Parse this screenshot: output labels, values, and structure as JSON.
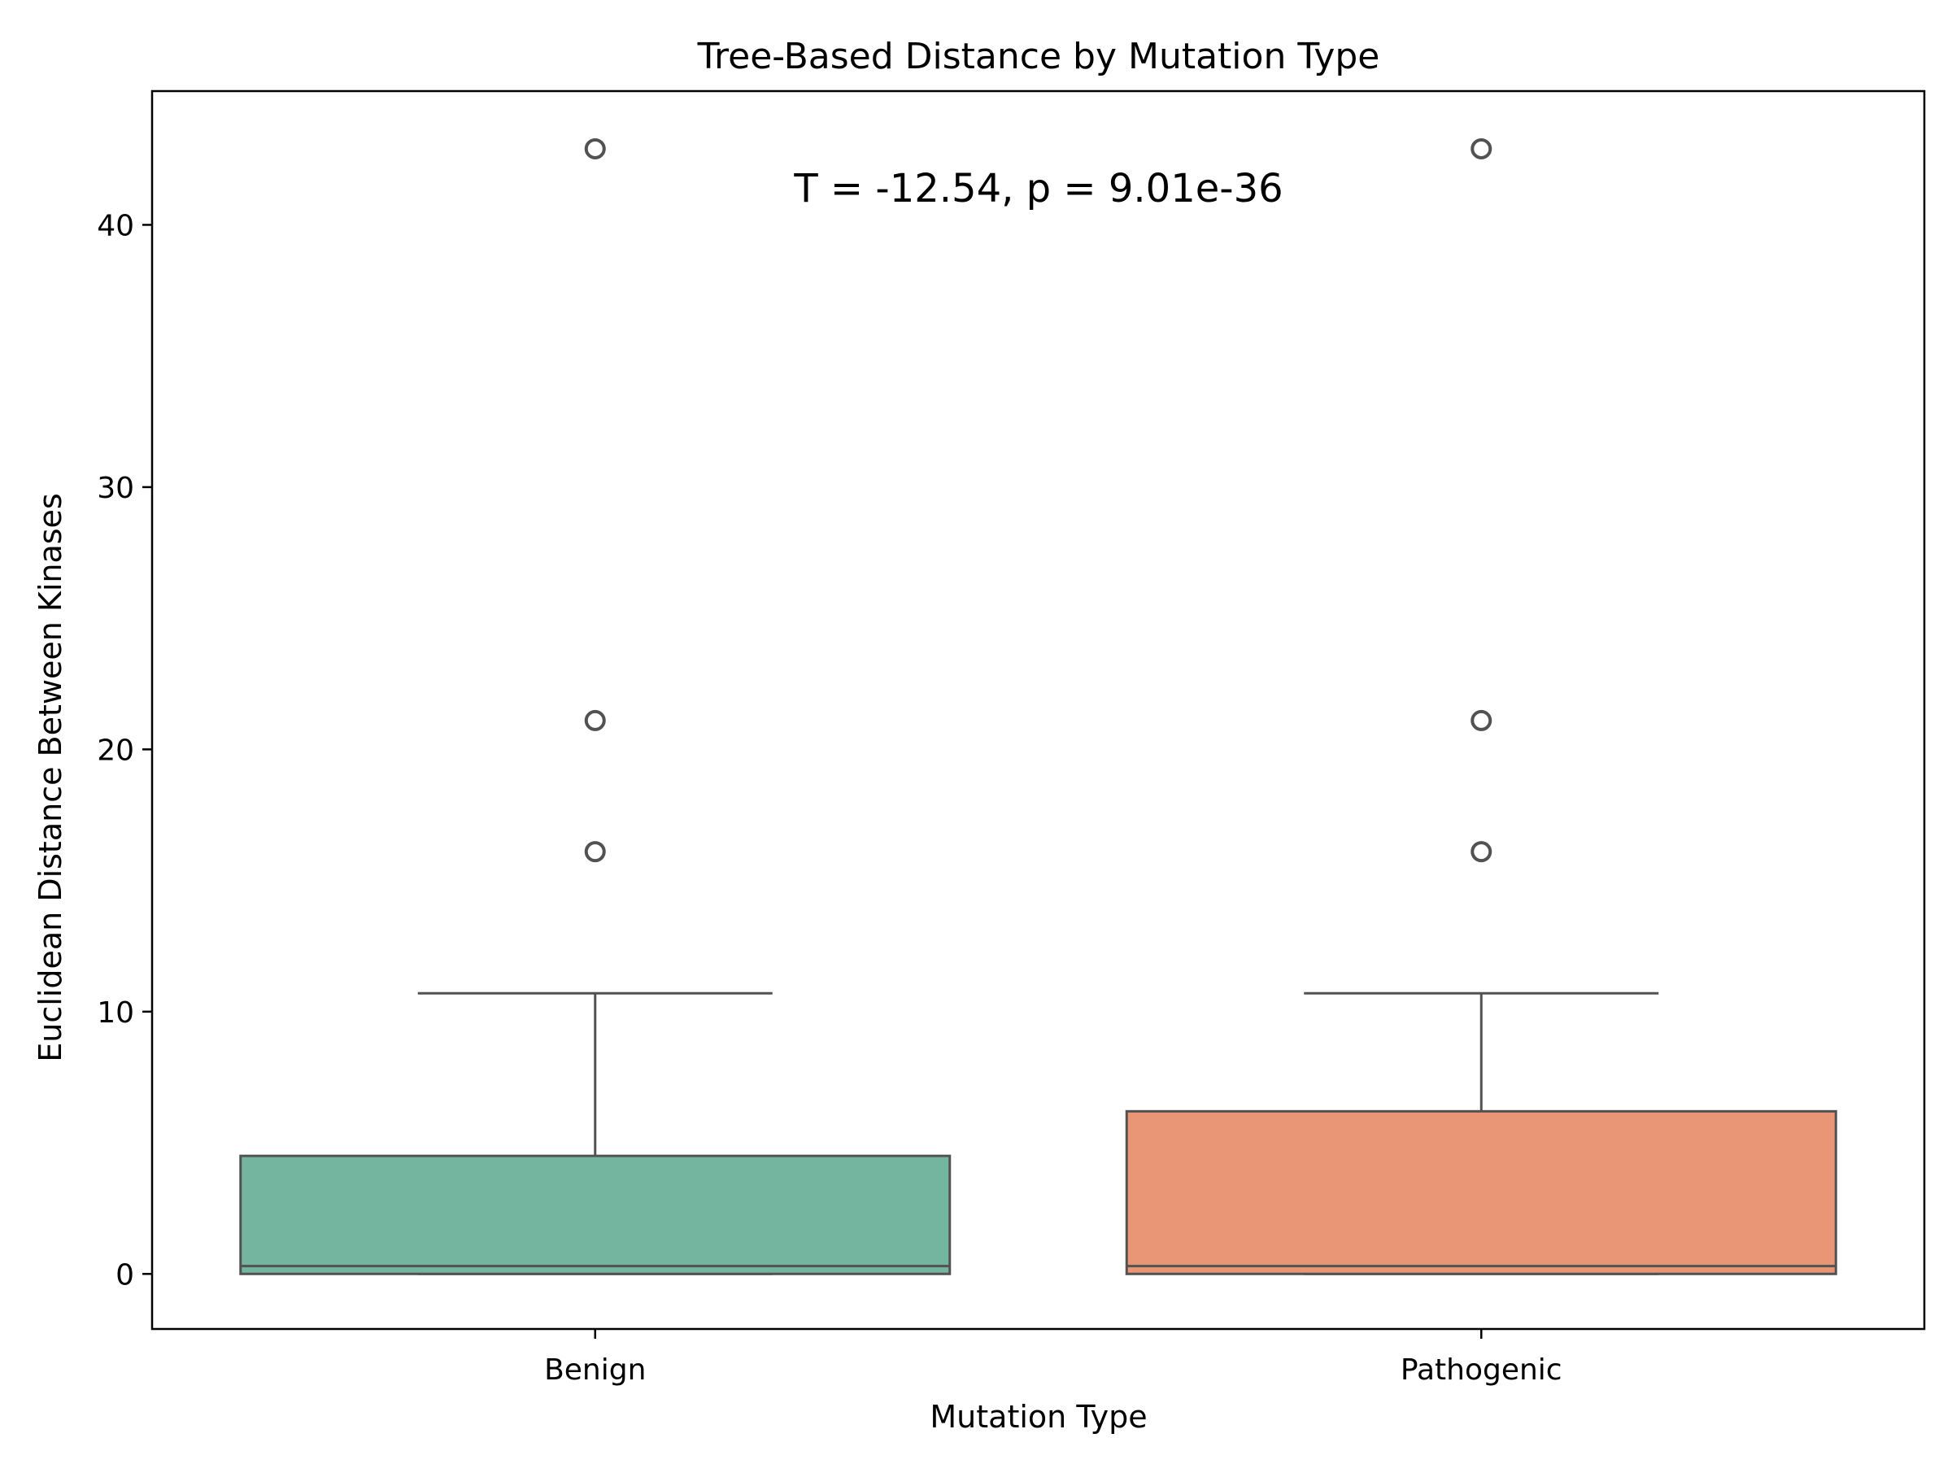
{
  "chart_data": {
    "type": "box",
    "title": "Tree-Based Distance by Mutation Type",
    "xlabel": "Mutation Type",
    "ylabel": "Euclidean Distance Between Kinases",
    "annotation": "T = -12.54, p = 9.01e-36",
    "ylim": [
      -2.1,
      45.1
    ],
    "yticks": [
      0,
      10,
      20,
      30,
      40
    ],
    "grid": false,
    "categories": [
      "Benign",
      "Pathogenic"
    ],
    "boxes": [
      {
        "category": "Benign",
        "color": "#73b59f",
        "min": 0.0,
        "q1": 0.0,
        "median": 0.3,
        "q3": 4.5,
        "max": 10.7,
        "outliers": [
          16.1,
          21.1,
          42.9
        ]
      },
      {
        "category": "Pathogenic",
        "color": "#e89675",
        "min": 0.0,
        "q1": 0.0,
        "median": 0.3,
        "q3": 6.2,
        "max": 10.7,
        "outliers": [
          16.1,
          21.1,
          42.9
        ]
      }
    ]
  }
}
